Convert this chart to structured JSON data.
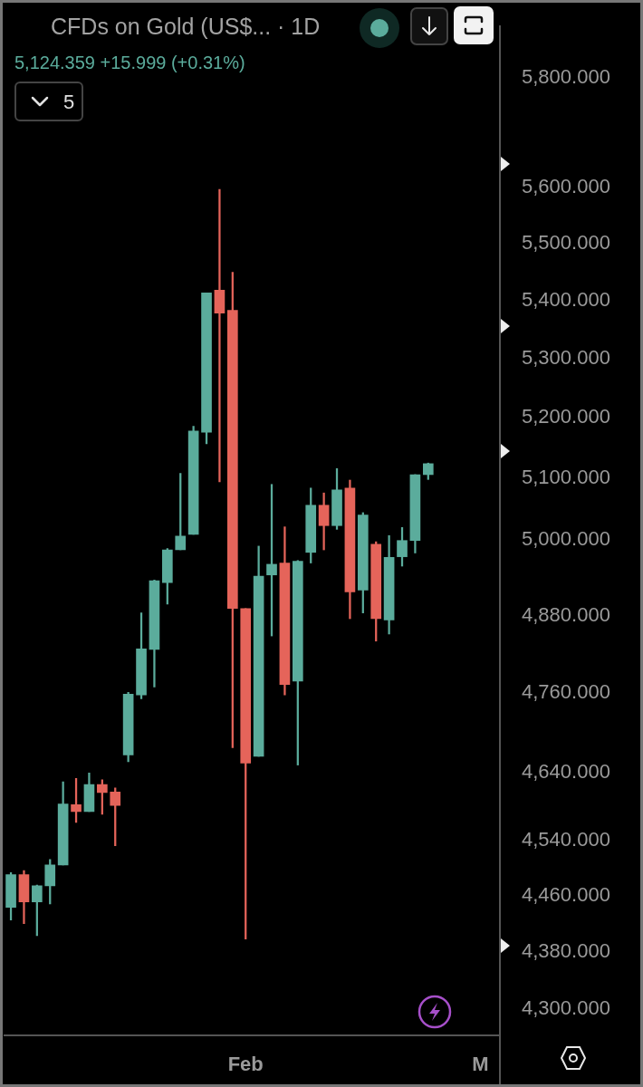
{
  "chart_data": {
    "type": "candlestick",
    "title": "CFDs on Gold (US$... · 1D",
    "subtitle": "5,124.359 +15.999 (+0.31%)",
    "annotations": [
      "5"
    ],
    "categories": [
      null,
      null,
      null,
      null,
      null,
      null,
      null,
      null,
      null,
      null,
      null,
      null,
      null,
      null,
      null,
      null,
      null,
      null,
      "Feb",
      null,
      null,
      null,
      null,
      null,
      null,
      null,
      null,
      null,
      null,
      null,
      null,
      null,
      null,
      null,
      null,
      null,
      "M",
      null
    ],
    "ohlc": [
      [
        4443,
        4493,
        4425,
        4490
      ],
      [
        4490,
        4496,
        4420,
        4451
      ],
      [
        4451,
        4475,
        4403,
        4474
      ],
      [
        4474,
        4512,
        4448,
        4504
      ],
      [
        4504,
        4626,
        4504,
        4593
      ],
      [
        4592,
        4631,
        4566,
        4582
      ],
      [
        4582,
        4639,
        4582,
        4622
      ],
      [
        4622,
        4629,
        4578,
        4610
      ],
      [
        4611,
        4617,
        4532,
        4591
      ],
      [
        4666,
        4761,
        4656,
        4758
      ],
      [
        4757,
        4884,
        4751,
        4828
      ],
      [
        4827,
        4936,
        4769,
        4935
      ],
      [
        4932,
        4986,
        4898,
        4984
      ],
      [
        4984,
        5108,
        4984,
        5006
      ],
      [
        5009,
        5186,
        5009,
        5178
      ],
      [
        5176,
        5413,
        5157,
        5413
      ],
      [
        5418,
        5596,
        5094,
        5378
      ],
      [
        5383,
        5449,
        4677,
        4891
      ],
      [
        4891,
        4891,
        4398,
        4654
      ],
      [
        4664,
        4990,
        4664,
        4942
      ],
      [
        4944,
        5090,
        4848,
        4961
      ],
      [
        4963,
        5021,
        4757,
        4773
      ],
      [
        4778,
        4967,
        4651,
        4966
      ],
      [
        4980,
        5084,
        4963,
        5056
      ],
      [
        5056,
        5076,
        4984,
        5023
      ],
      [
        5023,
        5116,
        5017,
        5081
      ],
      [
        5084,
        5097,
        4875,
        4917
      ],
      [
        4920,
        5044,
        4884,
        5040
      ],
      [
        4993,
        4997,
        4840,
        4875
      ],
      [
        4873,
        5007,
        4851,
        4972
      ],
      [
        4973,
        5020,
        4958,
        4999
      ],
      [
        4999,
        5106,
        4979,
        5106
      ],
      [
        5106,
        5125,
        5098,
        5124
      ],
      null,
      null,
      null,
      null,
      null
    ],
    "colors": [
      "#5bac9c",
      "#e5645a",
      "#5bac9c",
      "#5bac9c",
      "#5bac9c",
      "#e5645a",
      "#5bac9c",
      "#e5645a",
      "#e5645a",
      "#5bac9c",
      "#5bac9c",
      "#5bac9c",
      "#5bac9c",
      "#5bac9c",
      "#5bac9c",
      "#5bac9c",
      "#e5645a",
      "#e5645a",
      "#e5645a",
      "#5bac9c",
      "#5bac9c",
      "#e5645a",
      "#5bac9c",
      "#5bac9c",
      "#e5645a",
      "#5bac9c",
      "#e5645a",
      "#5bac9c",
      "#e5645a",
      "#5bac9c",
      "#5bac9c",
      "#5bac9c",
      "#5bac9c",
      null,
      null,
      null,
      null,
      null
    ],
    "log": true,
    "ylim": [
      4264,
      5897
    ],
    "yticks": [
      {
        "value": 4300,
        "label": "4,300.000"
      },
      {
        "value": 4380,
        "label": "4,380.000"
      },
      {
        "value": 4460,
        "label": "4,460.000"
      },
      {
        "value": 4540,
        "label": "4,540.000"
      },
      {
        "value": 4640,
        "label": "4,640.000"
      },
      {
        "value": 4760,
        "label": "4,760.000"
      },
      {
        "value": 4880,
        "label": "4,880.000"
      },
      {
        "value": 5000,
        "label": "5,000.000"
      },
      {
        "value": 5100,
        "label": "5,100.000"
      },
      {
        "value": 5200,
        "label": "5,200.000"
      },
      {
        "value": 5300,
        "label": "5,300.000"
      },
      {
        "value": 5400,
        "label": "5,400.000"
      },
      {
        "value": 5500,
        "label": "5,500.000"
      },
      {
        "value": 5600,
        "label": "5,600.000"
      },
      {
        "value": 5800,
        "label": "5,800.000"
      }
    ]
  }
}
